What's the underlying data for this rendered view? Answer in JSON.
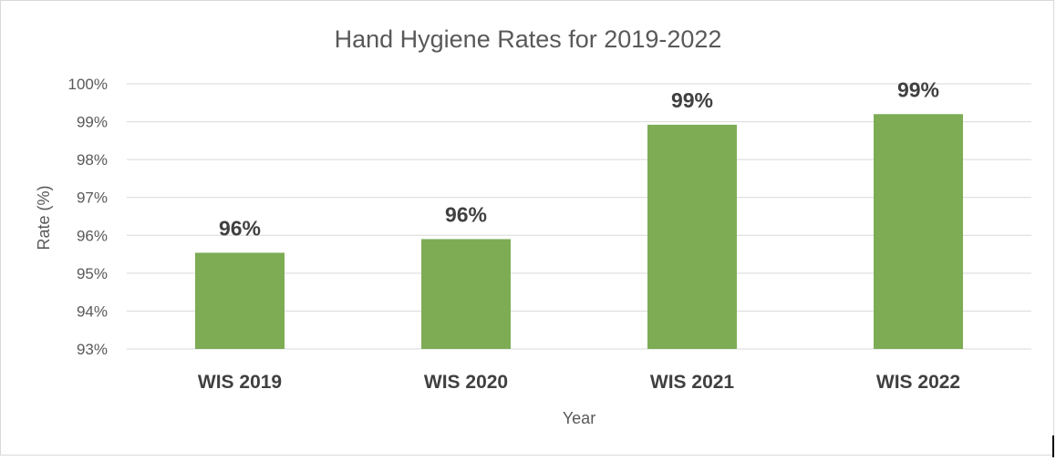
{
  "chart_data": {
    "type": "bar",
    "title": "Hand Hygiene Rates for  2019-2022",
    "xlabel": "Year",
    "ylabel": "Rate (%)",
    "categories": [
      "WIS 2019",
      "WIS 2020",
      "WIS 2021",
      "WIS 2022"
    ],
    "values": [
      95.54,
      95.9,
      98.92,
      99.2
    ],
    "data_labels": [
      "96%",
      "96%",
      "99%",
      "99%"
    ],
    "ylim": [
      93,
      100
    ],
    "yticks": [
      {
        "value": 93,
        "label": "93%"
      },
      {
        "value": 94,
        "label": "94%"
      },
      {
        "value": 95,
        "label": "95%"
      },
      {
        "value": 96,
        "label": "96%"
      },
      {
        "value": 97,
        "label": "97%"
      },
      {
        "value": 98,
        "label": "98%"
      },
      {
        "value": 99,
        "label": "99%"
      },
      {
        "value": 100,
        "label": "100%"
      }
    ],
    "grid": true,
    "legend": "none",
    "bar_color": "#7dac55"
  }
}
